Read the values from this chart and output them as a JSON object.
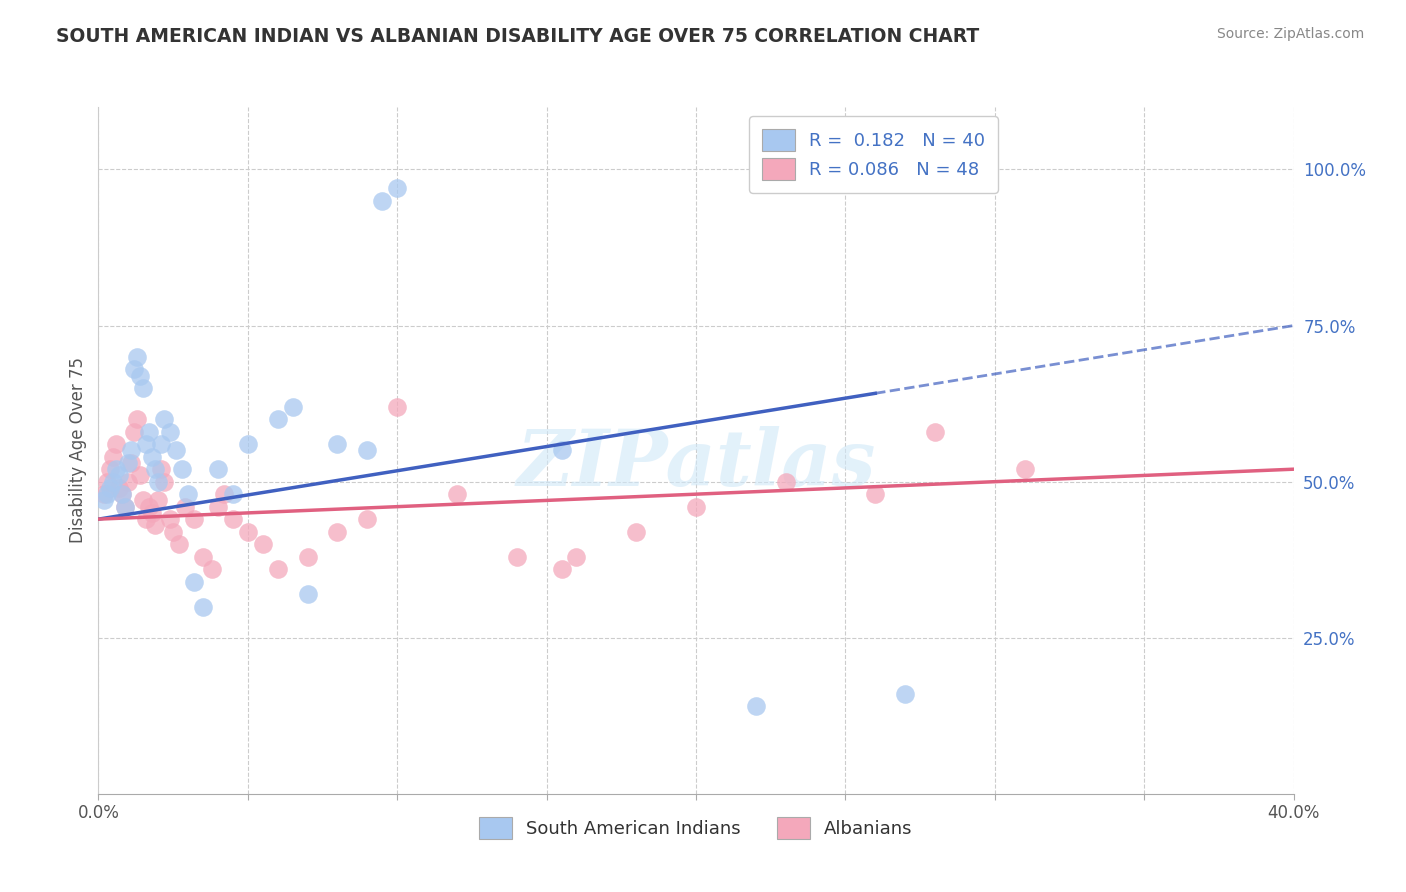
{
  "title": "SOUTH AMERICAN INDIAN VS ALBANIAN DISABILITY AGE OVER 75 CORRELATION CHART",
  "source": "Source: ZipAtlas.com",
  "ylabel": "Disability Age Over 75",
  "ytick_labels": [
    "100.0%",
    "75.0%",
    "50.0%",
    "25.0%"
  ],
  "ytick_values": [
    1.0,
    0.75,
    0.5,
    0.25
  ],
  "xlim": [
    0.0,
    0.4
  ],
  "ylim": [
    0.0,
    1.1
  ],
  "blue_R": 0.182,
  "blue_N": 40,
  "pink_R": 0.086,
  "pink_N": 48,
  "blue_color": "#A8C8F0",
  "pink_color": "#F4A8BB",
  "blue_line_color": "#4060C0",
  "pink_line_color": "#E06080",
  "blue_line_start": 0.0,
  "blue_line_solid_end": 0.26,
  "blue_line_end": 0.4,
  "pink_line_start": 0.0,
  "pink_line_end": 0.4,
  "watermark": "ZIPatlas",
  "blue_scatter_x": [
    0.002,
    0.003,
    0.004,
    0.005,
    0.006,
    0.007,
    0.008,
    0.009,
    0.01,
    0.011,
    0.012,
    0.013,
    0.014,
    0.015,
    0.016,
    0.017,
    0.018,
    0.019,
    0.02,
    0.021,
    0.022,
    0.024,
    0.026,
    0.028,
    0.03,
    0.032,
    0.035,
    0.04,
    0.045,
    0.05,
    0.06,
    0.065,
    0.07,
    0.08,
    0.09,
    0.095,
    0.1,
    0.155,
    0.22,
    0.27
  ],
  "blue_scatter_y": [
    0.47,
    0.48,
    0.49,
    0.5,
    0.52,
    0.51,
    0.48,
    0.46,
    0.53,
    0.55,
    0.68,
    0.7,
    0.67,
    0.65,
    0.56,
    0.58,
    0.54,
    0.52,
    0.5,
    0.56,
    0.6,
    0.58,
    0.55,
    0.52,
    0.48,
    0.34,
    0.3,
    0.52,
    0.48,
    0.56,
    0.6,
    0.62,
    0.32,
    0.56,
    0.55,
    0.95,
    0.97,
    0.55,
    0.14,
    0.16
  ],
  "pink_scatter_x": [
    0.002,
    0.003,
    0.004,
    0.005,
    0.006,
    0.007,
    0.008,
    0.009,
    0.01,
    0.011,
    0.012,
    0.013,
    0.014,
    0.015,
    0.016,
    0.017,
    0.018,
    0.019,
    0.02,
    0.021,
    0.022,
    0.024,
    0.025,
    0.027,
    0.029,
    0.032,
    0.035,
    0.038,
    0.04,
    0.042,
    0.045,
    0.05,
    0.055,
    0.06,
    0.07,
    0.08,
    0.09,
    0.1,
    0.12,
    0.14,
    0.155,
    0.16,
    0.18,
    0.2,
    0.23,
    0.26,
    0.28,
    0.31
  ],
  "pink_scatter_y": [
    0.48,
    0.5,
    0.52,
    0.54,
    0.56,
    0.49,
    0.48,
    0.46,
    0.5,
    0.53,
    0.58,
    0.6,
    0.51,
    0.47,
    0.44,
    0.46,
    0.45,
    0.43,
    0.47,
    0.52,
    0.5,
    0.44,
    0.42,
    0.4,
    0.46,
    0.44,
    0.38,
    0.36,
    0.46,
    0.48,
    0.44,
    0.42,
    0.4,
    0.36,
    0.38,
    0.42,
    0.44,
    0.62,
    0.48,
    0.38,
    0.36,
    0.38,
    0.42,
    0.46,
    0.5,
    0.48,
    0.58,
    0.52
  ],
  "blue_line_y_at_0": 0.44,
  "blue_line_y_at_40": 0.75,
  "pink_line_y_at_0": 0.44,
  "pink_line_y_at_40": 0.52
}
